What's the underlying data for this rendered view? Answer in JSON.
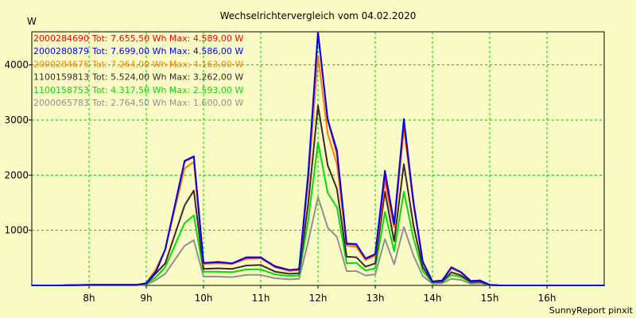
{
  "chart_data": {
    "type": "line",
    "title": "Wechselrichtervergleich vom 04.02.2020",
    "ylabel": "W",
    "xlabel": "",
    "footer": "SunnyReport pinxit",
    "ylim": [
      0,
      4600
    ],
    "xlim": [
      7.0,
      17.0
    ],
    "yticks": [
      1000,
      2000,
      3000,
      4000
    ],
    "ytick_labels": [
      "1000",
      "2000",
      "3000",
      "4000"
    ],
    "xticks": [
      8,
      9,
      10,
      11,
      12,
      13,
      14,
      15,
      16
    ],
    "xtick_labels": [
      "8h",
      "9h",
      "10h",
      "11h",
      "12h",
      "13h",
      "14h",
      "15h",
      "16h"
    ],
    "grid": true,
    "legend_position": "top-left",
    "x": [
      7.0,
      7.5,
      8.0,
      8.5,
      8.83,
      9.0,
      9.17,
      9.33,
      9.67,
      9.83,
      10.0,
      10.25,
      10.5,
      10.75,
      11.0,
      11.25,
      11.5,
      11.67,
      11.83,
      12.0,
      12.17,
      12.33,
      12.5,
      12.67,
      12.83,
      13.0,
      13.17,
      13.33,
      13.5,
      13.67,
      13.83,
      14.0,
      14.17,
      14.33,
      14.5,
      14.67,
      14.83,
      15.0,
      15.17,
      15.33,
      15.5,
      15.67,
      15.83,
      16.0,
      16.17,
      16.33,
      16.5,
      16.67,
      17.0
    ],
    "series": [
      {
        "name": "2000284690",
        "summary": "Tot: 7.655,50 Wh Max: 4.589,00 W",
        "color": "#ff0000",
        "values": [
          0,
          0,
          10,
          10,
          10,
          40,
          250,
          650,
          2250,
          2330,
          400,
          430,
          400,
          500,
          500,
          350,
          280,
          300,
          2000,
          4600,
          3000,
          2400,
          750,
          740,
          480,
          560,
          2000,
          1100,
          2950,
          1500,
          430,
          70,
          90,
          320,
          240,
          80,
          90,
          10,
          0,
          0,
          0,
          0,
          0,
          0,
          0,
          0,
          0,
          0,
          0
        ]
      },
      {
        "name": "2000280879",
        "summary": "Tot: 7.699,00 Wh Max: 4.586,00 W",
        "color": "#0000ff",
        "values": [
          0,
          0,
          10,
          10,
          10,
          40,
          250,
          650,
          2260,
          2340,
          410,
          420,
          400,
          510,
          510,
          340,
          280,
          290,
          2050,
          4580,
          3010,
          2450,
          760,
          750,
          490,
          570,
          2080,
          1120,
          3020,
          1500,
          430,
          70,
          90,
          330,
          240,
          80,
          90,
          10,
          0,
          0,
          0,
          0,
          0,
          0,
          0,
          0,
          0,
          0,
          0
        ]
      },
      {
        "name": "2000284675",
        "summary": "Tot: 7.264,00 Wh Max: 4.163,00 W",
        "color": "#ff8000",
        "values": [
          0,
          0,
          10,
          10,
          10,
          40,
          300,
          650,
          2120,
          2240,
          390,
          400,
          390,
          480,
          490,
          330,
          260,
          280,
          1900,
          4163,
          2750,
          2200,
          720,
          700,
          460,
          540,
          1880,
          1050,
          2850,
          1450,
          420,
          70,
          90,
          310,
          230,
          80,
          90,
          10,
          0,
          0,
          0,
          0,
          0,
          0,
          0,
          0,
          0,
          0,
          0
        ]
      },
      {
        "name": "1100159813",
        "summary": "Tot: 5.524,00 Wh Max: 3.262,00 W",
        "color": "#3c2828",
        "values": [
          0,
          0,
          8,
          8,
          8,
          30,
          220,
          400,
          1450,
          1720,
          300,
          310,
          300,
          360,
          370,
          250,
          210,
          220,
          1500,
          3262,
          2180,
          1750,
          520,
          510,
          340,
          400,
          1700,
          800,
          2200,
          1080,
          330,
          60,
          70,
          240,
          180,
          60,
          70,
          8,
          0,
          0,
          0,
          0,
          0,
          0,
          0,
          0,
          0,
          0,
          0
        ]
      },
      {
        "name": "1100158753",
        "summary": "Tot: 4.317,50 Wh Max: 2.593,00 W",
        "color": "#00e000",
        "values": [
          0,
          0,
          6,
          6,
          6,
          25,
          150,
          330,
          1130,
          1270,
          250,
          250,
          240,
          290,
          290,
          200,
          170,
          180,
          1200,
          2593,
          1680,
          1420,
          400,
          410,
          270,
          310,
          1330,
          620,
          1700,
          850,
          260,
          50,
          60,
          190,
          150,
          50,
          60,
          6,
          0,
          0,
          0,
          0,
          0,
          0,
          0,
          0,
          0,
          0,
          0
        ]
      },
      {
        "name": "2000065783",
        "summary": "Tot: 2.764,50 Wh Max: 1.600,00 W",
        "color": "#909090",
        "values": [
          0,
          0,
          4,
          4,
          4,
          15,
          100,
          210,
          720,
          820,
          160,
          160,
          150,
          190,
          190,
          130,
          110,
          120,
          800,
          1600,
          1050,
          880,
          260,
          260,
          180,
          200,
          840,
          380,
          1060,
          540,
          170,
          30,
          40,
          120,
          100,
          30,
          40,
          4,
          0,
          0,
          0,
          0,
          0,
          0,
          0,
          0,
          0,
          0,
          0
        ]
      }
    ]
  }
}
